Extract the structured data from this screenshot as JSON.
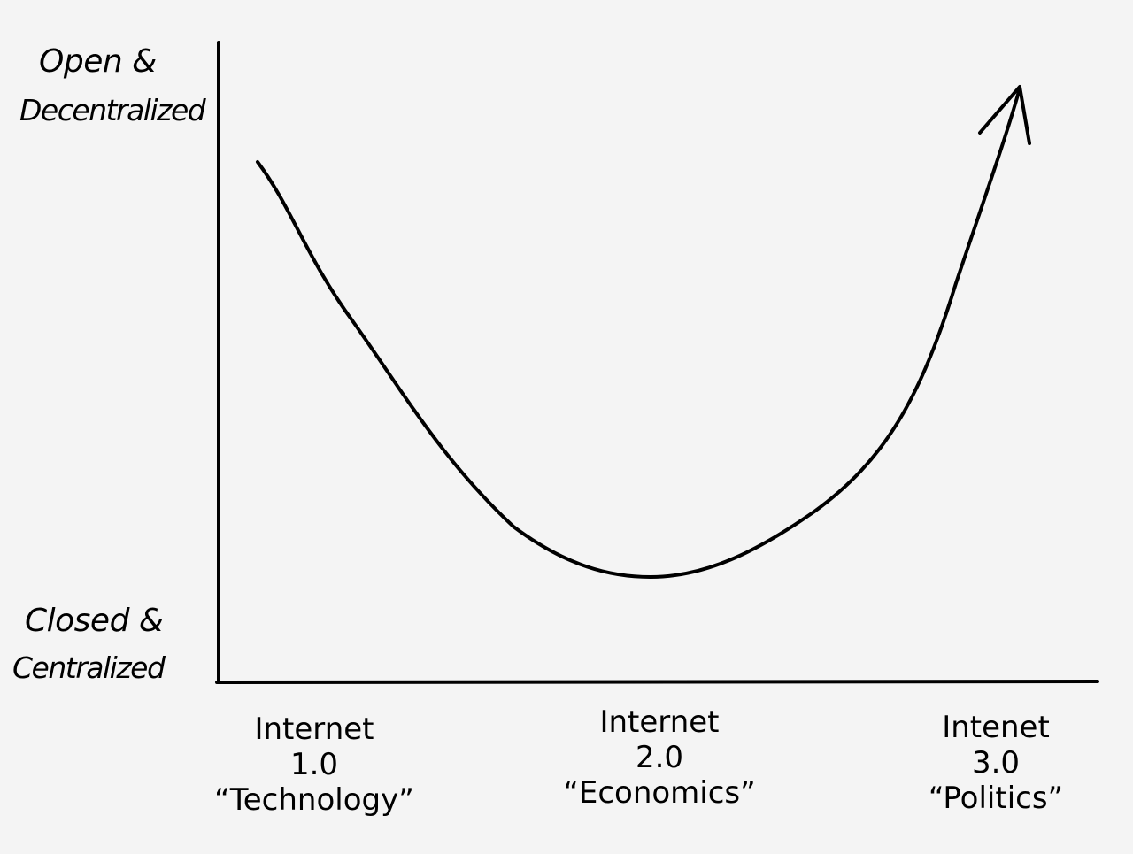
{
  "y_axis": {
    "top_label_line1": "Open &",
    "top_label_line2": "Decentralized",
    "bottom_label_line1": "Closed &",
    "bottom_label_line2": "Centralized"
  },
  "x_axis": {
    "eras": [
      {
        "title": "Internet",
        "version": "1.0",
        "theme": "“Technology”"
      },
      {
        "title": "Internet",
        "version": "2.0",
        "theme": "“Economics”"
      },
      {
        "title": "Intenet",
        "version": "3.0",
        "theme": "“Politics”"
      }
    ]
  },
  "colors": {
    "background": "#f4f4f4",
    "ink": "#000000"
  }
}
